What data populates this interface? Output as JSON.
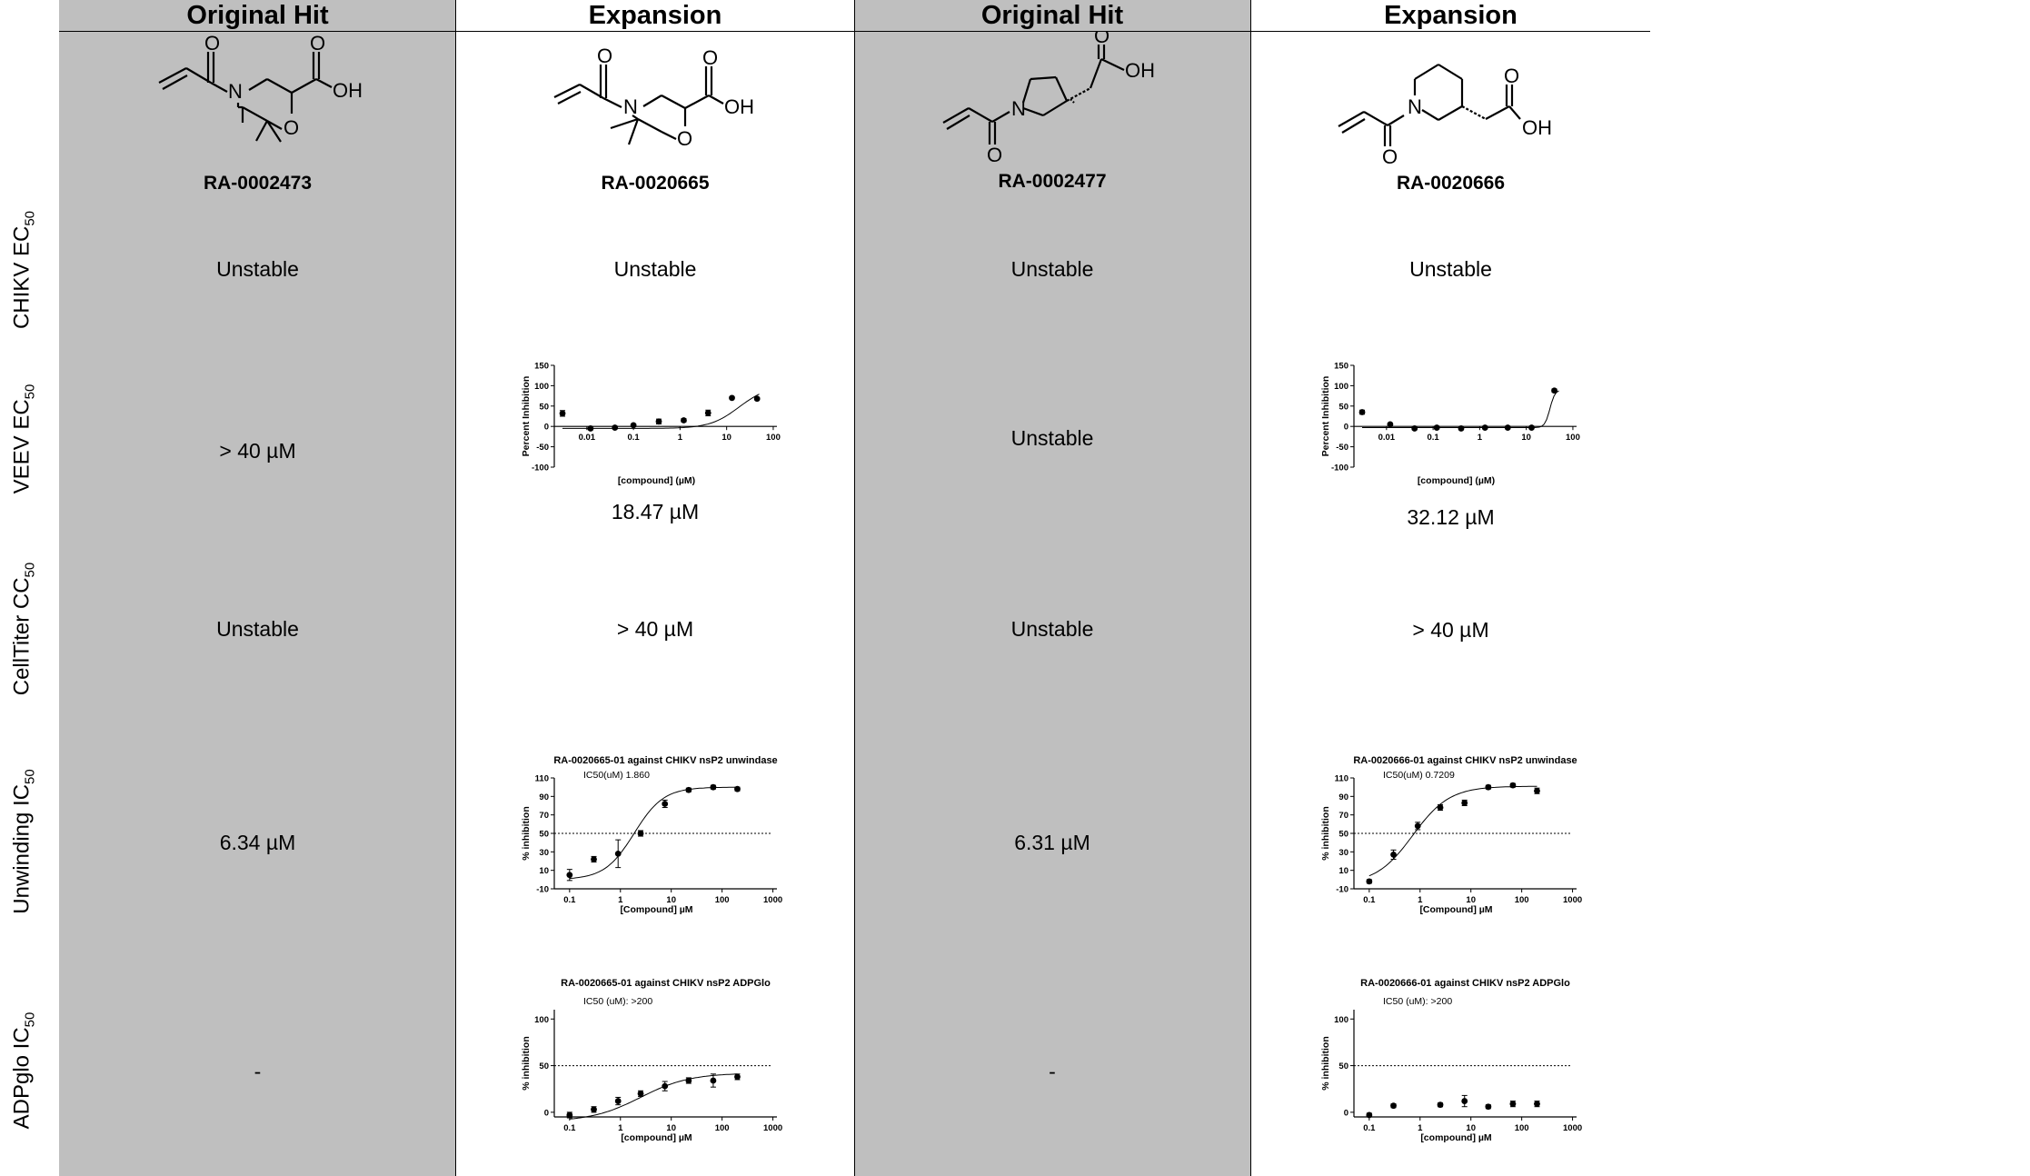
{
  "headers": [
    "Original Hit",
    "Expansion",
    "Original Hit",
    "Expansion"
  ],
  "row_labels": [
    {
      "main": "CHIKV EC",
      "sub": "50"
    },
    {
      "main": "VEEV EC",
      "sub": "50"
    },
    {
      "main": "CellTiter CC",
      "sub": "50"
    },
    {
      "main": "Unwinding IC",
      "sub": "50"
    },
    {
      "main": "ADPglo IC",
      "sub": "50"
    }
  ],
  "compounds": [
    "RA-0002473",
    "RA-0020665",
    "RA-0002477",
    "RA-0020666"
  ],
  "atoms": {
    "o": "O",
    "oh": "OH",
    "n": "N"
  },
  "cells": {
    "chikv": [
      "Unstable",
      "Unstable",
      "Unstable",
      "Unstable"
    ],
    "veev": [
      "> 40 µM",
      "18.47 µM",
      "Unstable",
      "32.12 µM"
    ],
    "celltiter": [
      "Unstable",
      "> 40 µM",
      "Unstable",
      "> 40 µM"
    ],
    "unwinding": [
      "6.34 µM",
      "",
      "6.31 µM",
      ""
    ],
    "adpglo": [
      "-",
      "",
      "-",
      ""
    ]
  },
  "chart_data": [
    {
      "id": "veev-0020665",
      "type": "scatter",
      "title": "",
      "xlabel": "[compound] (µM)",
      "ylabel": "Percent Inhibition",
      "xscale": "log",
      "xticks": [
        "0.01",
        "0.1",
        "1",
        "10",
        "100"
      ],
      "xtick_values": [
        0.01,
        0.1,
        1,
        10,
        100
      ],
      "yticks": [
        "150",
        "100",
        "50",
        "0",
        "-50",
        "-100"
      ],
      "ylim": [
        -100,
        150
      ],
      "x": [
        0.003,
        0.012,
        0.04,
        0.1,
        0.35,
        1.2,
        4,
        13,
        45
      ],
      "y": [
        32,
        -5,
        -3,
        3,
        12,
        15,
        33,
        70,
        68
      ],
      "err": [
        7,
        3,
        3,
        3,
        6,
        4,
        7,
        3,
        3
      ],
      "curve": {
        "type": "hill",
        "bottom": -5,
        "top": 100,
        "ec50": 18.47,
        "hill": 1.4,
        "xmin": 0.003,
        "xmax": 50
      }
    },
    {
      "id": "veev-0020666",
      "type": "scatter",
      "title": "",
      "xlabel": "[compound] (µM)",
      "ylabel": "Percent Inhibition",
      "xscale": "log",
      "xticks": [
        "0.01",
        "0.1",
        "1",
        "10",
        "100"
      ],
      "xtick_values": [
        0.01,
        0.1,
        1,
        10,
        100
      ],
      "yticks": [
        "150",
        "100",
        "50",
        "0",
        "-50",
        "-100"
      ],
      "ylim": [
        -100,
        150
      ],
      "x": [
        0.003,
        0.012,
        0.04,
        0.12,
        0.4,
        1.3,
        4,
        13,
        40
      ],
      "y": [
        35,
        5,
        -5,
        -3,
        -5,
        -3,
        -3,
        -3,
        88
      ],
      "err": [
        5,
        3,
        3,
        3,
        3,
        3,
        3,
        3,
        4
      ],
      "curve": {
        "type": "hill",
        "bottom": -3,
        "top": 90,
        "ec50": 32.12,
        "hill": 8,
        "xmin": 0.003,
        "xmax": 50
      }
    },
    {
      "id": "unwind-0020665",
      "type": "scatter",
      "title": "RA-0020665-01 against CHIKV nsP2 unwindase",
      "annotation": "IC50(uM)  1.860",
      "xlabel": "[Compound] µM",
      "ylabel": "% inhibition",
      "xscale": "log",
      "xticks": [
        "0.1",
        "1",
        "10",
        "100",
        "1000"
      ],
      "xtick_values": [
        0.1,
        1,
        10,
        100,
        1000
      ],
      "yticks": [
        "110",
        "90",
        "70",
        "50",
        "30",
        "10",
        "-10"
      ],
      "ylim": [
        -10,
        110
      ],
      "x": [
        0.1,
        0.3,
        0.9,
        2.5,
        7.5,
        22,
        67,
        200
      ],
      "y": [
        5,
        22,
        28,
        50,
        82,
        97,
        100,
        98
      ],
      "err": [
        6,
        3,
        15,
        3,
        4,
        2,
        2,
        2
      ],
      "threshold": 50,
      "curve": {
        "type": "hill",
        "bottom": 0,
        "top": 100,
        "ec50": 1.86,
        "hill": 1.5,
        "xmin": 0.1,
        "xmax": 200
      }
    },
    {
      "id": "unwind-0020666",
      "type": "scatter",
      "title": "RA-0020666-01 against CHIKV nsP2 unwindase",
      "annotation": "IC50(uM)  0.7209",
      "xlabel": "[Compound] µM",
      "ylabel": "% inhibition",
      "xscale": "log",
      "xticks": [
        "0.1",
        "1",
        "10",
        "100",
        "1000"
      ],
      "xtick_values": [
        0.1,
        1,
        10,
        100,
        1000
      ],
      "yticks": [
        "110",
        "90",
        "70",
        "50",
        "30",
        "10",
        "-10"
      ],
      "ylim": [
        -10,
        110
      ],
      "x": [
        0.1,
        0.3,
        0.9,
        2.5,
        7.5,
        22,
        67,
        200
      ],
      "y": [
        -2,
        27,
        58,
        78,
        83,
        100,
        102,
        96
      ],
      "err": [
        2,
        5,
        4,
        3,
        3,
        2,
        2,
        3
      ],
      "threshold": 50,
      "curve": {
        "type": "hill",
        "bottom": -5,
        "top": 101,
        "ec50": 0.7209,
        "hill": 1.2,
        "xmin": 0.1,
        "xmax": 200
      }
    },
    {
      "id": "adpglo-0020665",
      "type": "scatter",
      "title": "RA-0020665-01 against CHIKV nsP2 ADPGlo",
      "annotation": "IC50 (uM): >200",
      "xlabel": "[compound] µM",
      "ylabel": "% inhibition",
      "xscale": "log",
      "xticks": [
        "0.1",
        "1",
        "10",
        "100",
        "1000"
      ],
      "xtick_values": [
        0.1,
        1,
        10,
        100,
        1000
      ],
      "yticks": [
        "100",
        "50",
        "0"
      ],
      "ylim": [
        -5,
        110
      ],
      "x": [
        0.1,
        0.3,
        0.9,
        2.5,
        7.5,
        22,
        67,
        200
      ],
      "y": [
        -3,
        3,
        12,
        20,
        28,
        34,
        34,
        38
      ],
      "err": [
        3,
        3,
        4,
        3,
        5,
        3,
        7,
        3
      ],
      "threshold": 50,
      "curve": {
        "type": "hill",
        "bottom": -10,
        "top": 42,
        "ec50": 2.5,
        "hill": 0.9,
        "xmin": 0.1,
        "xmax": 200
      }
    },
    {
      "id": "adpglo-0020666",
      "type": "scatter",
      "title": "RA-0020666-01 against CHIKV nsP2 ADPGlo",
      "annotation": "IC50 (uM): >200",
      "xlabel": "[compound] µM",
      "ylabel": "% inhibition",
      "xscale": "log",
      "xticks": [
        "0.1",
        "1",
        "10",
        "100",
        "1000"
      ],
      "xtick_values": [
        0.1,
        1,
        10,
        100,
        1000
      ],
      "yticks": [
        "100",
        "50",
        "0"
      ],
      "ylim": [
        -5,
        110
      ],
      "x": [
        0.1,
        0.3,
        2.5,
        7.5,
        22,
        67,
        200
      ],
      "y": [
        -3,
        7,
        8,
        12,
        6,
        9,
        9
      ],
      "err": [
        2,
        2,
        2,
        6,
        2,
        3,
        3
      ],
      "threshold": 50
    }
  ]
}
